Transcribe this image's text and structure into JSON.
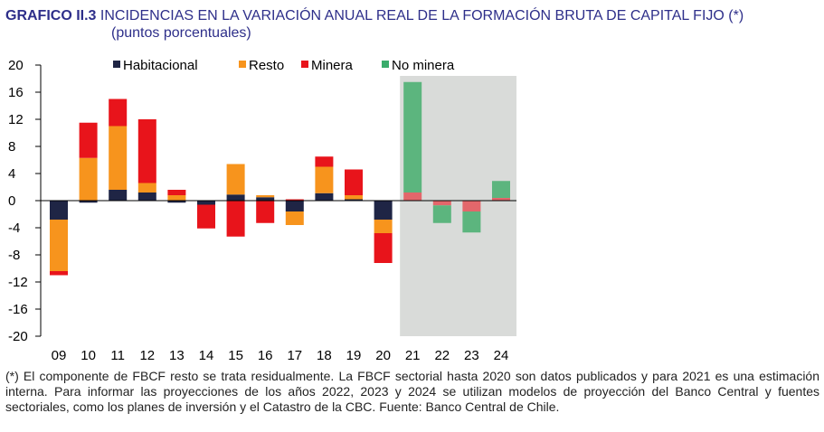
{
  "header": {
    "code": "GRAFICO II.3",
    "title": "INCIDENCIAS EN LA VARIACIÓN ANUAL REAL DE LA FORMACIÓN BRUTA DE CAPITAL FIJO (*)",
    "subtitle": "(puntos porcentuales)"
  },
  "chart_data": {
    "type": "bar",
    "stacked": true,
    "categories": [
      "09",
      "10",
      "11",
      "12",
      "13",
      "14",
      "15",
      "16",
      "17",
      "18",
      "19",
      "20",
      "21",
      "22",
      "23",
      "24"
    ],
    "ylim": [
      -20,
      20
    ],
    "yticks": [
      20,
      16,
      12,
      8,
      4,
      0,
      -4,
      -8,
      -12,
      -16,
      -20
    ],
    "legend_position": "top",
    "shaded_region": {
      "from": "21",
      "to": "24",
      "color": "#d9dbd9"
    },
    "series": [
      {
        "name": "Habitacional",
        "color": "#1f2545",
        "values": [
          -2.8,
          -0.3,
          1.6,
          1.2,
          -0.3,
          -0.6,
          0.9,
          0.5,
          -1.6,
          1.1,
          0.2,
          -2.8,
          null,
          null,
          null,
          null
        ]
      },
      {
        "name": "Resto",
        "color": "#f7941d",
        "values": [
          -7.6,
          6.3,
          9.4,
          1.4,
          0.8,
          0.0,
          4.5,
          0.3,
          -2.0,
          3.9,
          0.6,
          -2.0,
          null,
          null,
          null,
          null
        ]
      },
      {
        "name": "Minera",
        "color": "#e8141b",
        "values": [
          -0.6,
          5.2,
          4.0,
          9.4,
          0.8,
          -3.5,
          -5.3,
          -3.3,
          0.2,
          1.5,
          3.8,
          -4.4,
          1.2,
          -0.7,
          -1.6,
          0.4
        ]
      },
      {
        "name": "No minera",
        "color": "#3aac6b",
        "values": [
          null,
          null,
          null,
          null,
          null,
          null,
          null,
          null,
          null,
          null,
          null,
          null,
          16.3,
          -2.6,
          -3.1,
          2.5
        ]
      }
    ],
    "shaded_colors": {
      "Minera": "#e3676b",
      "No minera": "#5cb57e"
    }
  },
  "footnote": "(*) El componente de FBCF resto se trata residualmente. La FBCF sectorial hasta 2020 son datos publicados y para 2021 es una estimación interna. Para informar las proyecciones de los años 2022, 2023 y 2024 se utilizan modelos de proyección del Banco Central y fuentes sectoriales, como los planes de inversión y el Catastro de la CBC. Fuente: Banco Central de Chile."
}
